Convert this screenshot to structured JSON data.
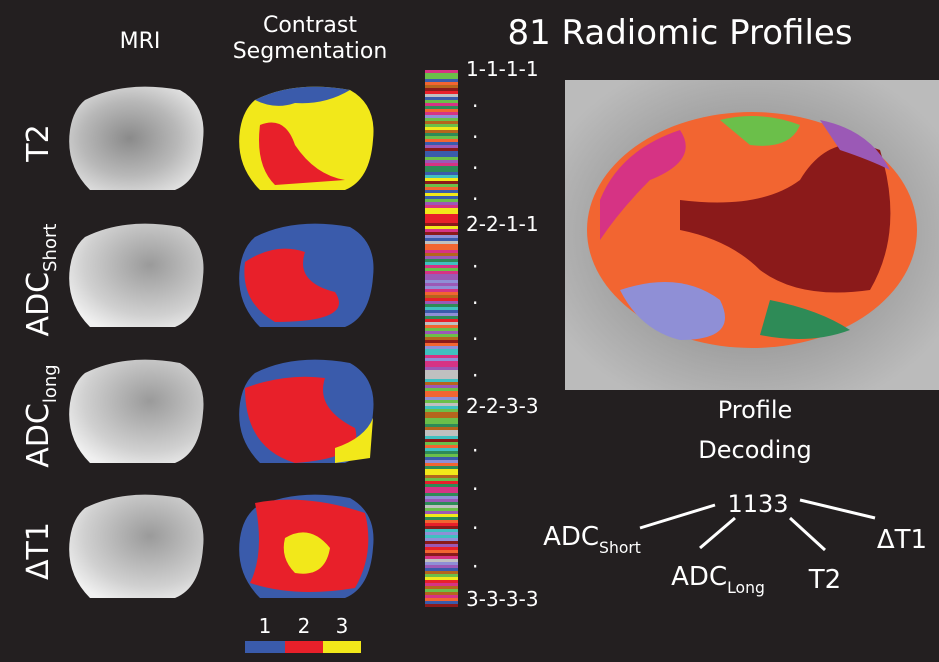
{
  "header": {
    "mri": "MRI",
    "segmentation": [
      "Contrast",
      "Segmentation"
    ],
    "title": "81 Radiomic Profiles"
  },
  "rows": [
    {
      "label": "T2",
      "sub": null
    },
    {
      "label": "ADC",
      "sub": "Short"
    },
    {
      "label": "ADC",
      "sub": "long"
    },
    {
      "label": "ΔT1",
      "sub": null
    }
  ],
  "legend": [
    "1",
    "2",
    "3"
  ],
  "profile_scale": {
    "labels": [
      "1-1-1-1",
      "2-2-1-1",
      "2-2-3-3",
      "3-3-3-3"
    ],
    "ellipsis": [
      ".",
      ".",
      ".",
      ".",
      ".",
      ".",
      ".",
      ".",
      ".",
      ".",
      ".",
      "."
    ]
  },
  "decoding": {
    "title": [
      "Profile",
      "Decoding"
    ],
    "code": "1133",
    "parts": [
      {
        "label": "ADC",
        "sub": "Short"
      },
      {
        "label": "ADC",
        "sub": "Long"
      },
      {
        "label": "T2",
        "sub": null
      },
      {
        "label": "ΔT1",
        "sub": null
      }
    ]
  }
}
